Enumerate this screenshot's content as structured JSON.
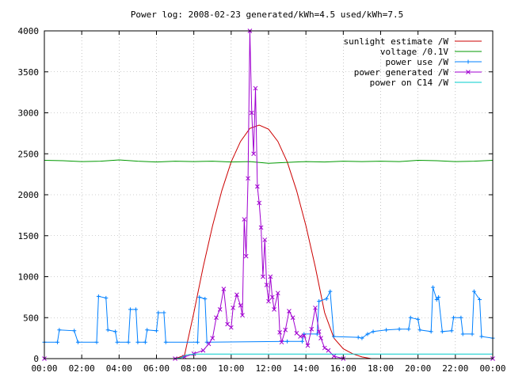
{
  "chart_data": {
    "type": "line",
    "title": "Power log: 2008-02-23 generated/kWh=4.5 used/kWh=7.5",
    "xlabel": "",
    "ylabel": "",
    "xlim": [
      0,
      24
    ],
    "ylim": [
      0,
      4000
    ],
    "grid": true,
    "legend_position": "top-right",
    "x_ticks": [
      "00:00",
      "02:00",
      "04:00",
      "06:00",
      "08:00",
      "10:00",
      "12:00",
      "14:00",
      "16:00",
      "18:00",
      "20:00",
      "22:00",
      "00:00"
    ],
    "y_ticks": [
      0,
      500,
      1000,
      1500,
      2000,
      2500,
      3000,
      3500,
      4000
    ],
    "series": [
      {
        "name": "sunlight estimate /W",
        "color": "#cc0000",
        "style": "line",
        "points": [
          [
            7.0,
            0
          ],
          [
            7.5,
            40
          ],
          [
            8.0,
            560
          ],
          [
            8.5,
            1120
          ],
          [
            9.0,
            1620
          ],
          [
            9.5,
            2050
          ],
          [
            10.0,
            2400
          ],
          [
            10.5,
            2650
          ],
          [
            11.0,
            2810
          ],
          [
            11.5,
            2850
          ],
          [
            12.0,
            2800
          ],
          [
            12.5,
            2650
          ],
          [
            13.0,
            2400
          ],
          [
            13.5,
            2050
          ],
          [
            14.0,
            1620
          ],
          [
            14.5,
            1120
          ],
          [
            15.0,
            560
          ],
          [
            15.5,
            250
          ],
          [
            16.0,
            120
          ],
          [
            16.5,
            60
          ],
          [
            17.0,
            20
          ],
          [
            17.5,
            0
          ]
        ]
      },
      {
        "name": "voltage /0.1V",
        "color": "#009900",
        "style": "line",
        "points": [
          [
            0,
            2420
          ],
          [
            1,
            2415
          ],
          [
            2,
            2405
          ],
          [
            3,
            2410
          ],
          [
            4,
            2425
          ],
          [
            5,
            2410
          ],
          [
            6,
            2400
          ],
          [
            7,
            2410
          ],
          [
            8,
            2405
          ],
          [
            9,
            2410
          ],
          [
            10,
            2400
          ],
          [
            11,
            2405
          ],
          [
            12,
            2385
          ],
          [
            13,
            2395
          ],
          [
            14,
            2405
          ],
          [
            15,
            2400
          ],
          [
            16,
            2410
          ],
          [
            17,
            2405
          ],
          [
            18,
            2410
          ],
          [
            19,
            2405
          ],
          [
            20,
            2420
          ],
          [
            21,
            2415
          ],
          [
            22,
            2405
          ],
          [
            23,
            2410
          ],
          [
            24,
            2420
          ]
        ]
      },
      {
        "name": "power use /W",
        "color": "#0080ff",
        "style": "linespoints-plus",
        "points": [
          [
            0,
            200
          ],
          [
            0.7,
            200
          ],
          [
            0.8,
            350
          ],
          [
            1.6,
            340
          ],
          [
            1.8,
            200
          ],
          [
            2.8,
            200
          ],
          [
            2.9,
            760
          ],
          [
            3.3,
            740
          ],
          [
            3.4,
            350
          ],
          [
            3.8,
            330
          ],
          [
            3.9,
            200
          ],
          [
            4.5,
            200
          ],
          [
            4.6,
            600
          ],
          [
            4.9,
            600
          ],
          [
            5.0,
            200
          ],
          [
            5.4,
            200
          ],
          [
            5.5,
            350
          ],
          [
            6.0,
            340
          ],
          [
            6.1,
            560
          ],
          [
            6.4,
            560
          ],
          [
            6.5,
            200
          ],
          [
            8.2,
            200
          ],
          [
            8.3,
            750
          ],
          [
            8.6,
            730
          ],
          [
            8.7,
            200
          ],
          [
            13.0,
            210
          ],
          [
            13.8,
            210
          ],
          [
            13.9,
            300
          ],
          [
            14.6,
            300
          ],
          [
            14.7,
            700
          ],
          [
            15.1,
            730
          ],
          [
            15.3,
            820
          ],
          [
            15.5,
            270
          ],
          [
            16.8,
            260
          ],
          [
            17.0,
            250
          ],
          [
            17.3,
            300
          ],
          [
            17.6,
            330
          ],
          [
            18.3,
            350
          ],
          [
            19.0,
            360
          ],
          [
            19.5,
            360
          ],
          [
            19.6,
            500
          ],
          [
            20.0,
            480
          ],
          [
            20.1,
            350
          ],
          [
            20.7,
            330
          ],
          [
            20.8,
            870
          ],
          [
            21.0,
            720
          ],
          [
            21.1,
            750
          ],
          [
            21.3,
            330
          ],
          [
            21.8,
            340
          ],
          [
            21.9,
            500
          ],
          [
            22.3,
            500
          ],
          [
            22.4,
            300
          ],
          [
            22.9,
            300
          ],
          [
            23.0,
            820
          ],
          [
            23.3,
            720
          ],
          [
            23.4,
            270
          ],
          [
            24,
            250
          ]
        ]
      },
      {
        "name": "power generated /W",
        "color": "#a000d0",
        "style": "linespoints-x",
        "points": [
          [
            0,
            0
          ],
          [
            7.0,
            0
          ],
          [
            7.5,
            20
          ],
          [
            8.0,
            60
          ],
          [
            8.5,
            100
          ],
          [
            8.8,
            180
          ],
          [
            9.0,
            250
          ],
          [
            9.2,
            500
          ],
          [
            9.4,
            600
          ],
          [
            9.6,
            850
          ],
          [
            9.8,
            420
          ],
          [
            10.0,
            380
          ],
          [
            10.1,
            620
          ],
          [
            10.3,
            780
          ],
          [
            10.5,
            650
          ],
          [
            10.6,
            530
          ],
          [
            10.7,
            1700
          ],
          [
            10.8,
            1250
          ],
          [
            10.9,
            2200
          ],
          [
            11.0,
            4000
          ],
          [
            11.1,
            3000
          ],
          [
            11.2,
            2500
          ],
          [
            11.3,
            3300
          ],
          [
            11.4,
            2100
          ],
          [
            11.5,
            1900
          ],
          [
            11.6,
            1600
          ],
          [
            11.7,
            1000
          ],
          [
            11.8,
            1450
          ],
          [
            11.9,
            900
          ],
          [
            12.0,
            700
          ],
          [
            12.1,
            1000
          ],
          [
            12.2,
            750
          ],
          [
            12.3,
            600
          ],
          [
            12.5,
            800
          ],
          [
            12.6,
            320
          ],
          [
            12.7,
            200
          ],
          [
            12.9,
            350
          ],
          [
            13.1,
            580
          ],
          [
            13.3,
            500
          ],
          [
            13.5,
            310
          ],
          [
            13.7,
            270
          ],
          [
            13.9,
            280
          ],
          [
            14.1,
            160
          ],
          [
            14.3,
            360
          ],
          [
            14.5,
            620
          ],
          [
            14.7,
            330
          ],
          [
            14.8,
            250
          ],
          [
            15.0,
            130
          ],
          [
            15.2,
            100
          ],
          [
            15.5,
            30
          ],
          [
            16.0,
            0
          ],
          [
            24,
            0
          ]
        ]
      },
      {
        "name": "power on C14 /W",
        "color": "#00cccc",
        "style": "line",
        "points": [
          [
            0,
            0
          ],
          [
            7.0,
            0
          ],
          [
            7.3,
            10
          ],
          [
            7.6,
            45
          ],
          [
            8.0,
            55
          ],
          [
            24,
            55
          ]
        ]
      }
    ]
  }
}
